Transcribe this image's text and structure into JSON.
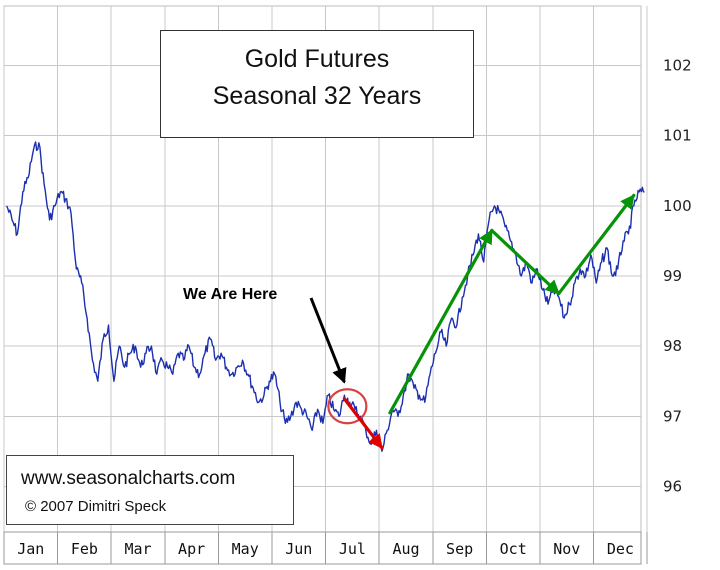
{
  "chart_data": {
    "type": "line",
    "title": "Gold Futures",
    "subtitle": "Seasonal 32 Years",
    "xlabel": "",
    "ylabel": "",
    "categories": [
      "Jan",
      "Feb",
      "Mar",
      "Apr",
      "May",
      "Jun",
      "Jul",
      "Aug",
      "Sep",
      "Oct",
      "Nov",
      "Dec"
    ],
    "yticks": [
      96,
      97,
      98,
      99,
      100,
      101,
      102
    ],
    "ylim": [
      95.35,
      102.85
    ],
    "y_axis_side": "right",
    "grid": true,
    "series": [
      {
        "color": "#1c2fb0",
        "x": [
          0,
          0.1,
          0.2,
          0.3,
          0.4,
          0.5,
          0.6,
          0.7,
          0.8,
          0.9,
          1.0,
          1.1,
          1.2,
          1.3,
          1.4,
          1.5,
          1.6,
          1.7,
          1.8,
          1.9,
          2.0,
          2.1,
          2.2,
          2.3,
          2.4,
          2.5,
          2.6,
          2.7,
          2.8,
          2.9,
          3.0,
          3.1,
          3.2,
          3.3,
          3.4,
          3.5,
          3.6,
          3.7,
          3.8,
          3.9,
          4.0,
          4.1,
          4.2,
          4.3,
          4.4,
          4.5,
          4.6,
          4.7,
          4.8,
          4.9,
          5.0,
          5.1,
          5.2,
          5.3,
          5.4,
          5.5,
          5.6,
          5.7,
          5.8,
          5.9,
          6.0,
          6.1,
          6.2,
          6.3,
          6.4,
          6.5,
          6.6,
          6.7,
          6.8,
          6.9,
          7.0,
          7.1,
          7.2,
          7.3,
          7.4,
          7.5,
          7.6,
          7.7,
          7.8,
          7.9,
          8.0,
          8.1,
          8.2,
          8.3,
          8.4,
          8.5,
          8.6,
          8.7,
          8.8,
          8.9,
          9.0,
          9.1,
          9.2,
          9.3,
          9.4,
          9.5,
          9.6,
          9.7,
          9.8,
          9.9,
          10.0,
          10.1,
          10.2,
          10.3,
          10.4,
          10.5,
          10.6,
          10.7,
          10.8,
          10.9,
          11.0,
          11.1,
          11.2,
          11.3,
          11.4,
          11.5,
          11.6,
          11.7,
          11.8,
          11.9
        ],
        "y": [
          100.0,
          99.8,
          99.6,
          100.2,
          100.4,
          100.8,
          100.9,
          100.3,
          99.8,
          100.0,
          100.2,
          100.1,
          99.9,
          99.1,
          98.9,
          98.4,
          97.8,
          97.5,
          98.1,
          98.3,
          97.5,
          98.0,
          97.7,
          97.9,
          98.0,
          97.7,
          97.9,
          98.0,
          97.6,
          97.8,
          97.7,
          97.6,
          97.9,
          97.8,
          98.0,
          97.7,
          97.6,
          97.9,
          98.1,
          97.8,
          97.9,
          97.7,
          97.6,
          97.7,
          97.8,
          97.6,
          97.4,
          97.2,
          97.3,
          97.5,
          97.6,
          97.2,
          96.9,
          97.0,
          97.2,
          97.1,
          97.0,
          96.8,
          97.1,
          96.9,
          97.3,
          97.1,
          97.0,
          97.3,
          97.2,
          97.1,
          97.0,
          96.8,
          96.6,
          96.8,
          96.5,
          96.8,
          97.1,
          97.0,
          97.3,
          97.6,
          97.4,
          97.3,
          97.2,
          97.6,
          97.9,
          98.2,
          98.0,
          98.4,
          98.3,
          98.7,
          99.0,
          99.3,
          99.6,
          99.2,
          99.8,
          100.0,
          99.9,
          99.7,
          99.5,
          99.3,
          99.0,
          99.2,
          98.9,
          99.1,
          98.8,
          98.6,
          98.8,
          98.7,
          98.4,
          98.6,
          98.9,
          99.1,
          99.0,
          99.3,
          98.9,
          99.2,
          99.4,
          99.0,
          99.1,
          99.5,
          99.6,
          100.0,
          100.2,
          100.2
        ]
      }
    ],
    "annotations": [
      {
        "text": "We Are Here",
        "target": {
          "x": 6.35,
          "y": 97.2
        }
      },
      {
        "text": "",
        "color": "#e00000",
        "from": {
          "x": 6.35,
          "y": 97.25
        },
        "to": {
          "x": 7.05,
          "y": 96.55
        }
      },
      {
        "text": "",
        "color": "#079307",
        "from": {
          "x": 7.2,
          "y": 97.05
        },
        "to": {
          "x": 9.1,
          "y": 99.65
        }
      },
      {
        "text": "",
        "color": "#079307",
        "from": {
          "x": 9.1,
          "y": 99.65
        },
        "to": {
          "x": 10.35,
          "y": 98.75
        }
      },
      {
        "text": "",
        "color": "#079307",
        "from": {
          "x": 10.35,
          "y": 98.75
        },
        "to": {
          "x": 11.75,
          "y": 100.15
        }
      }
    ]
  },
  "credit": {
    "url": "www.seasonalcharts.com",
    "copyright": "© 2007   Dimitri Speck"
  }
}
